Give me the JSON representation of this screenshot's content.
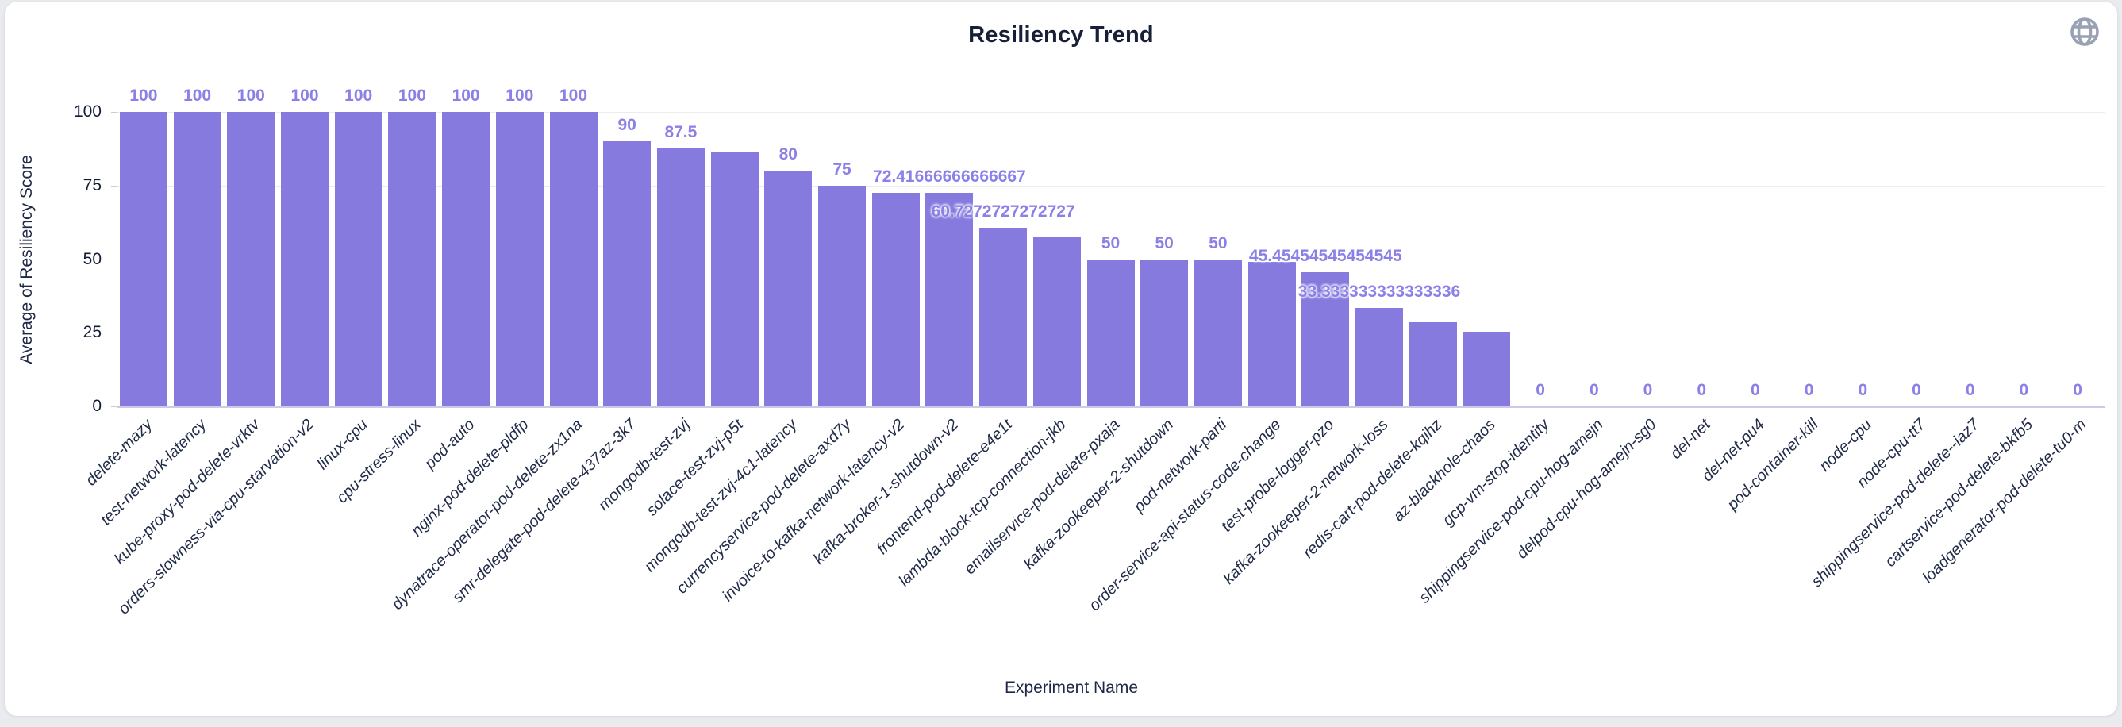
{
  "page": {
    "background": "#e9ebef",
    "card_background": "#ffffff"
  },
  "header": {
    "title": "Resiliency Trend",
    "globe_icon": "globe-icon",
    "globe_color": "#99a2b2"
  },
  "chart_data": {
    "type": "bar",
    "title": "Resiliency Trend",
    "xlabel": "Experiment Name",
    "ylabel": "Average of Resiliency Score",
    "ylim": [
      0,
      100
    ],
    "yticks": [
      0,
      25,
      50,
      75,
      100
    ],
    "grid": true,
    "legend": "none",
    "bar_color": "#867ade",
    "value_label_color": "#8b80e8",
    "axis_text_color": "#1e2845",
    "categories": [
      "delete-mazy",
      "test-network-latency",
      "kube-proxy-pod-delete-vrktv",
      "orders-slowness-via-cpu-starvation-v2",
      "linux-cpu",
      "cpu-stress-linux",
      "pod-auto",
      "nginx-pod-delete-pldfp",
      "dynatrace-operator-pod-delete-zx1na",
      "smr-delegate-pod-delete-437az-3k7",
      "mongodb-test-zvj",
      "solace-test-zvj-p5t",
      "mongodb-test-zvj-4c1-latency",
      "currencyservice-pod-delete-axd7y",
      "invoice-to-kafka-network-latency-v2",
      "kafka-broker-1-shutdown-v2",
      "frontend-pod-delete-e4e1t",
      "lambda-block-tcp-connection-jkb",
      "emailservice-pod-delete-pxaja",
      "kafka-zookeeper-2-shutdown",
      "pod-network-parti",
      "order-service-api-status-code-change",
      "test-probe-logger-pzo",
      "kafka-zookeeper-2-network-loss",
      "redis-cart-pod-delete-kqihz",
      "az-blackhole-chaos",
      "gcp-vm-stop-identity",
      "shippingservice-pod-cpu-hog-amejn",
      "delpod-cpu-hog-amejn-sg0",
      "del-net",
      "del-net-pu4",
      "pod-container-kill",
      "node-cpu",
      "node-cpu-tt7",
      "shippingservice-pod-delete--iaz7",
      "cartservice-pod-delete-bkfb5",
      "loadgenerator-pod-delete-tu0-m"
    ],
    "values": [
      100,
      100,
      100,
      100,
      100,
      100,
      100,
      100,
      100,
      90,
      87.5,
      86.3,
      80,
      75,
      72.5,
      72.41666666666667,
      60.7272727272727,
      57.3,
      50,
      50,
      50,
      49,
      45.45454545454545,
      33.333333333333336,
      28.6,
      25.4,
      0,
      0,
      0,
      0,
      0,
      0,
      0,
      0,
      0,
      0,
      0
    ],
    "value_labels": [
      "100",
      "100",
      "100",
      "100",
      "100",
      "100",
      "100",
      "100",
      "100",
      "90",
      "87.5",
      "",
      "80",
      "75",
      "",
      "72.41666666666667",
      "60.7272727272727",
      "",
      "50",
      "50",
      "50",
      "",
      "45.45454545454545",
      "33.333333333333336",
      "",
      "",
      "0",
      "0",
      "0",
      "0",
      "0",
      "0",
      "0",
      "0",
      "0",
      "0",
      "0"
    ]
  }
}
